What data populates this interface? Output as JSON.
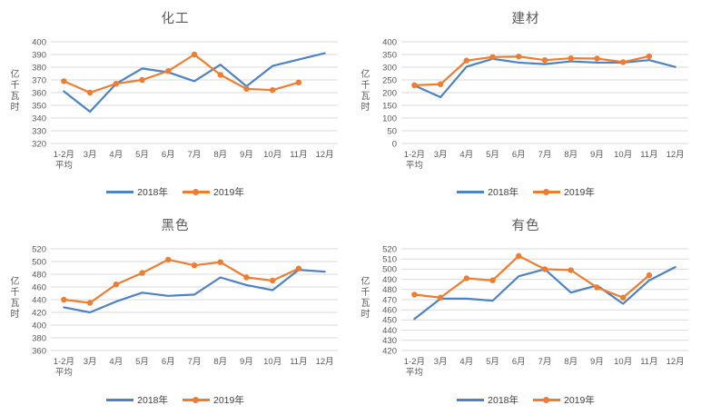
{
  "page": {
    "background": "#ffffff"
  },
  "colors": {
    "series_2018": "#4D82C4",
    "series_2019": "#ED7D31",
    "gridline": "#D9D9D9",
    "axis_text": "#595959",
    "title_text": "#595959"
  },
  "chart_data": [
    {
      "type": "line",
      "title": "化工",
      "ylabel": "亿千瓦时",
      "y_min": 320,
      "y_max": 400,
      "y_step": 10,
      "grid": true,
      "legend_position": "bottom",
      "categories": [
        "1-2月\n平均",
        "3月",
        "4月",
        "5月",
        "6月",
        "7月",
        "8月",
        "9月",
        "10月",
        "11月",
        "12月"
      ],
      "series": [
        {
          "name": "2018年",
          "color": "#4D82C4",
          "marker": false,
          "values": [
            361,
            345,
            367,
            379,
            376,
            369,
            382,
            365,
            381,
            386,
            391
          ]
        },
        {
          "name": "2019年",
          "color": "#ED7D31",
          "marker": true,
          "values": [
            369,
            360,
            367,
            370,
            377,
            390,
            374,
            363,
            362,
            368
          ]
        }
      ]
    },
    {
      "type": "line",
      "title": "建材",
      "ylabel": "亿千瓦时",
      "y_min": 0,
      "y_max": 400,
      "y_step": 50,
      "grid": true,
      "legend_position": "bottom",
      "categories": [
        "1-2月\n平均",
        "3月",
        "4月",
        "5月",
        "6月",
        "7月",
        "8月",
        "9月",
        "10月",
        "11月",
        "12月"
      ],
      "series": [
        {
          "name": "2018年",
          "color": "#4D82C4",
          "marker": false,
          "values": [
            228,
            182,
            302,
            333,
            318,
            312,
            323,
            318,
            318,
            328,
            301
          ]
        },
        {
          "name": "2019年",
          "color": "#ED7D31",
          "marker": true,
          "values": [
            229,
            233,
            326,
            340,
            342,
            328,
            335,
            334,
            320,
            343
          ]
        }
      ]
    },
    {
      "type": "line",
      "title": "黑色",
      "ylabel": "亿千瓦时",
      "y_min": 360,
      "y_max": 520,
      "y_step": 20,
      "grid": true,
      "legend_position": "bottom",
      "categories": [
        "1-2月\n平均",
        "3月",
        "4月",
        "5月",
        "6月",
        "7月",
        "8月",
        "9月",
        "10月",
        "11月",
        "12月"
      ],
      "series": [
        {
          "name": "2018年",
          "color": "#4D82C4",
          "marker": false,
          "values": [
            428,
            420,
            437,
            451,
            446,
            448,
            475,
            463,
            455,
            487,
            484
          ]
        },
        {
          "name": "2019年",
          "color": "#ED7D31",
          "marker": true,
          "values": [
            440,
            435,
            464,
            482,
            503,
            494,
            499,
            475,
            470,
            489
          ]
        }
      ]
    },
    {
      "type": "line",
      "title": "有色",
      "ylabel": "亿千瓦时",
      "y_min": 420,
      "y_max": 520,
      "y_step": 10,
      "grid": true,
      "legend_position": "bottom",
      "categories": [
        "1-2月\n平均",
        "3月",
        "4月",
        "5月",
        "6月",
        "7月",
        "8月",
        "9月",
        "10月",
        "11月",
        "12月"
      ],
      "series": [
        {
          "name": "2018年",
          "color": "#4D82C4",
          "marker": false,
          "values": [
            451,
            471,
            471,
            469,
            493,
            500,
            477,
            484,
            466,
            489,
            502
          ]
        },
        {
          "name": "2019年",
          "color": "#ED7D31",
          "marker": true,
          "values": [
            475,
            472,
            491,
            489,
            513,
            500,
            499,
            482,
            472,
            494
          ]
        }
      ]
    }
  ]
}
